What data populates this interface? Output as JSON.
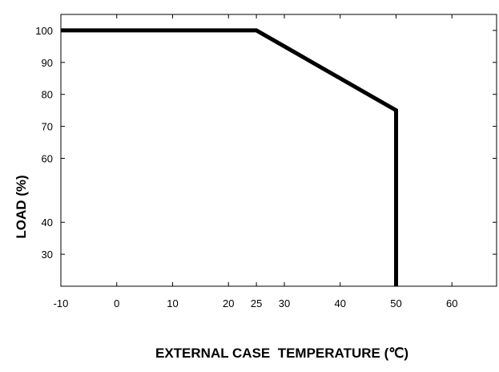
{
  "chart_data": {
    "type": "line",
    "xlabel": "EXTERNAL CASE  TEMPERATURE (℃)",
    "ylabel": "LOAD (%)",
    "xlim": [
      -10,
      68
    ],
    "ylim": [
      20,
      105
    ],
    "x_ticks": [
      -10,
      0,
      10,
      20,
      25,
      30,
      40,
      50,
      60
    ],
    "y_ticks": [
      100,
      90,
      80,
      70,
      60,
      40,
      30
    ],
    "grid": false,
    "series": [
      {
        "x": [
          -10,
          25,
          50,
          50
        ],
        "y": [
          100,
          100,
          75,
          20
        ]
      }
    ],
    "line_color": "#000000"
  }
}
